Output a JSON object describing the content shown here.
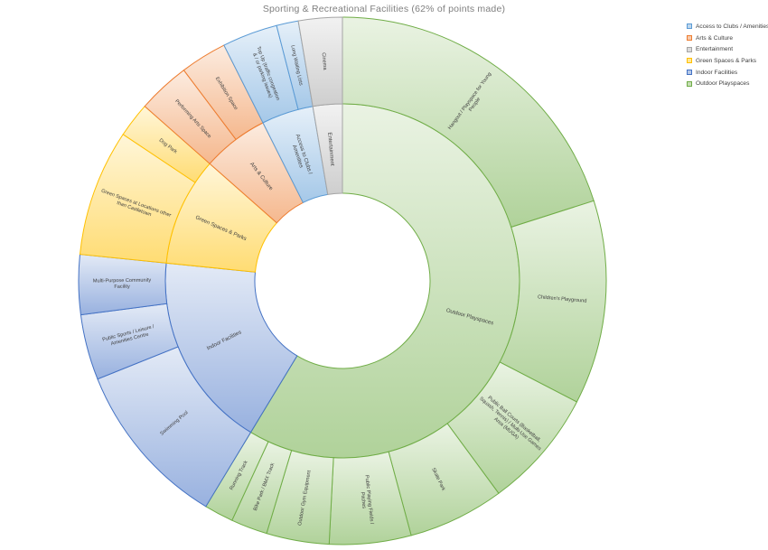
{
  "chart_data": {
    "type": "sunburst",
    "title": "Sporting & Recreational Facilities (62% of points made)",
    "legend_position": "top-right",
    "categories": [
      {
        "name": "Outdoor Playspaces",
        "label": "Outdoor Playspaces",
        "color": "#70ad47",
        "children": [
          {
            "name": "Hangout / Playspace for Young People",
            "value": 22.5
          },
          {
            "name": "Children's Playground",
            "value": 14.0
          },
          {
            "name": "Public Ball Courts (Basketball, Squash, Tennis) / Multi-Use Games Area (MUGA)",
            "value": 8.2
          },
          {
            "name": "Skate Park",
            "value": 6.6
          },
          {
            "name": "Public Playing Fields / Pitches",
            "value": 5.6
          },
          {
            "name": "Outdoor Gym Equipment",
            "value": 4.3
          },
          {
            "name": "Bike Park / BMX Track",
            "value": 2.5
          },
          {
            "name": "Running Track",
            "value": 2.0
          }
        ]
      },
      {
        "name": "Indoor Facilities",
        "label": "Indoor Facilities",
        "color": "#4472c4",
        "children": [
          {
            "name": "Swimming Pool",
            "value": 11.5
          },
          {
            "name": "Public Sports / Leisure / Amenities Centre",
            "value": 4.5
          },
          {
            "name": "Multi-Purpose Community Facility",
            "value": 4.1
          }
        ]
      },
      {
        "name": "Green Spaces & Parks",
        "label": "Green Spaces & Parks",
        "color": "#ffc000",
        "children": [
          {
            "name": "Green Spaces at Locations other than Castletown",
            "value": 8.7
          },
          {
            "name": "Dog Park",
            "value": 2.4
          }
        ]
      },
      {
        "name": "Arts & Culture",
        "label": "Arts & Culture",
        "color": "#ed7d31",
        "children": [
          {
            "name": "Performing Arts Space",
            "value": 3.6
          },
          {
            "name": "Exhibition Space",
            "value": 3.2
          }
        ]
      },
      {
        "name": "Access to Clubs / Amenities",
        "label": "Access to Clubs / Amenities",
        "color": "#5b9bd5",
        "children": [
          {
            "name": "Top Up (traffic congestion & / or parking issues)",
            "value": 3.8
          },
          {
            "name": "Long Waiting Lists",
            "value": 1.5
          }
        ]
      },
      {
        "name": "Entertainment",
        "label": "Entertainment",
        "color": "#a5a5a5",
        "children": [
          {
            "name": "Cinema",
            "value": 3.0
          }
        ]
      }
    ],
    "legend": [
      {
        "label": "Access to Clubs / Amenities",
        "color": "#5b9bd5"
      },
      {
        "label": "Arts & Culture",
        "color": "#ed7d31"
      },
      {
        "label": "Entertainment",
        "color": "#a5a5a5"
      },
      {
        "label": "Green Spaces & Parks",
        "color": "#ffc000"
      },
      {
        "label": "Indoor Facilities",
        "color": "#4472c4"
      },
      {
        "label": "Outdoor Playspaces",
        "color": "#70ad47"
      }
    ]
  }
}
